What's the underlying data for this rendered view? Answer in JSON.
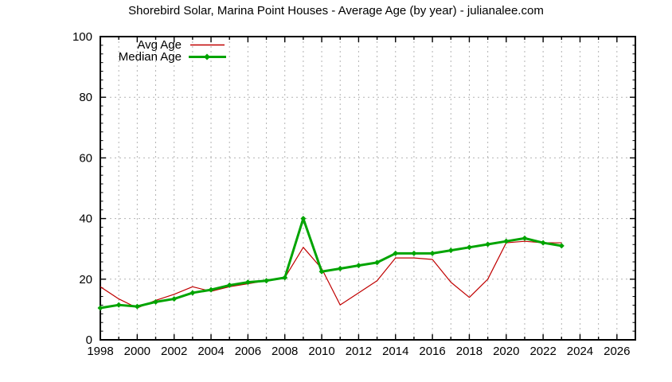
{
  "chart_data": {
    "type": "line",
    "title": "Shorebird Solar, Marina Point Houses - Average Age (by year) - julianalee.com",
    "xlabel": "",
    "ylabel": "",
    "xlim": [
      1998,
      2027
    ],
    "ylim": [
      0,
      100
    ],
    "grid": "on",
    "legend_position": "top-left-inside",
    "axis_color": "#000000",
    "grid_color": "#b3b3b3",
    "x_tick_labels": [
      "1998",
      "2000",
      "2002",
      "2004",
      "2006",
      "2008",
      "2010",
      "2012",
      "2014",
      "2016",
      "2018",
      "2020",
      "2022",
      "2024",
      "2026"
    ],
    "y_tick_labels": [
      "0",
      "20",
      "40",
      "60",
      "80",
      "100"
    ],
    "x": [
      1998,
      1999,
      2000,
      2001,
      2002,
      2003,
      2004,
      2005,
      2006,
      2007,
      2008,
      2009,
      2010,
      2011,
      2012,
      2013,
      2014,
      2015,
      2016,
      2017,
      2018,
      2019,
      2020,
      2021,
      2022,
      2023
    ],
    "series": [
      {
        "name": "Avg Age",
        "color": "#c00000",
        "line_width": 1.2,
        "marker": "none",
        "values": [
          17.5,
          13.5,
          10.5,
          13,
          15,
          17.5,
          16,
          17.5,
          18.5,
          19.5,
          20.5,
          30.5,
          23.5,
          11.5,
          15.5,
          19.5,
          27,
          27,
          26.5,
          19,
          14,
          20,
          32,
          32.5,
          32,
          32
        ]
      },
      {
        "name": "Median Age",
        "color": "#00a400",
        "line_width": 3,
        "marker": "diamond",
        "values": [
          10.5,
          11.5,
          11,
          12.5,
          13.5,
          15.5,
          16.5,
          18,
          19,
          19.5,
          20.5,
          40,
          22.5,
          23.5,
          24.5,
          25.5,
          28.5,
          28.5,
          28.5,
          29.5,
          30.5,
          31.5,
          32.5,
          33.5,
          32,
          31
        ]
      }
    ]
  }
}
